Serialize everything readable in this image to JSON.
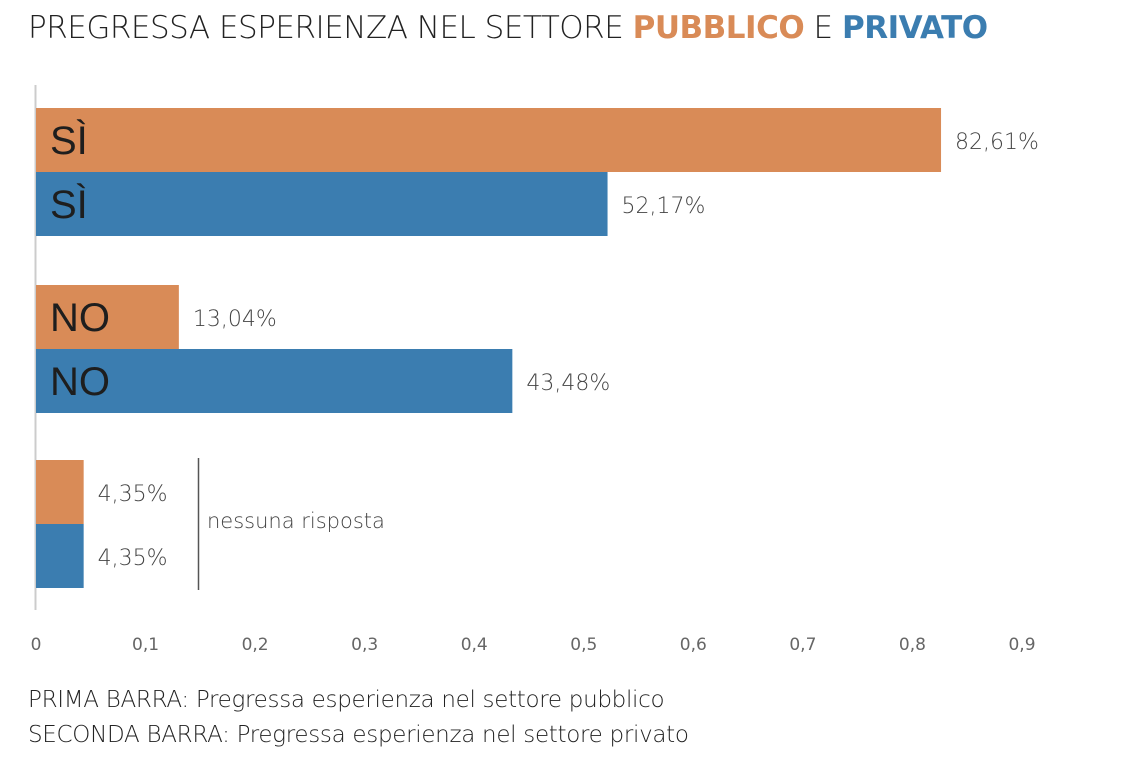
{
  "title": {
    "prefix": "PREGRESSA ESPERIENZA NEL SETTORE ",
    "pubblico": "PUBBLICO",
    "joiner": " E ",
    "privato": "PRIVATO"
  },
  "notes": {
    "first": "PRIMA BARRA: Pregressa esperienza nel settore pubblico",
    "second": "SECONDA BARRA: Pregressa esperienza nel settore privato"
  },
  "colors": {
    "pubblico": "#d98b57",
    "privato": "#3b7db0"
  },
  "chart_data": {
    "type": "bar",
    "orientation": "horizontal",
    "groups": [
      {
        "inner_label": "SÌ",
        "values": [
          0.8261,
          0.5217
        ],
        "labels": [
          "82,61%",
          "52,17%"
        ]
      },
      {
        "inner_label": "NO",
        "values": [
          0.1304,
          0.4348
        ],
        "labels": [
          "13,04%",
          "43,48%"
        ]
      },
      {
        "inner_label": "",
        "values": [
          0.0435,
          0.0435
        ],
        "labels": [
          "4,35%",
          "4,35%"
        ]
      }
    ],
    "annotation": "nessuna risposta",
    "xlim": [
      0,
      0.9
    ],
    "xticks": [
      0,
      0.1,
      0.2,
      0.3,
      0.4,
      0.5,
      0.6,
      0.7,
      0.8,
      0.9
    ],
    "xtick_labels": [
      "0",
      "0,1",
      "0,2",
      "0,3",
      "0,4",
      "0,5",
      "0,6",
      "0,7",
      "0,8",
      "0,9"
    ],
    "grid": false
  }
}
